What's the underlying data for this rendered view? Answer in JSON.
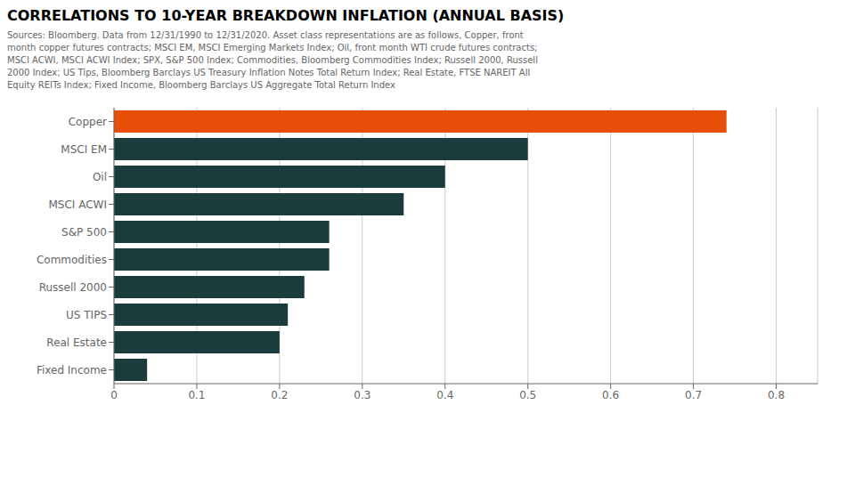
{
  "chart_data": {
    "type": "bar",
    "orientation": "horizontal",
    "title": "CORRELATIONS TO 10-YEAR BREAKDOWN INFLATION (ANNUAL BASIS)",
    "subtitle": "Sources: Bloomberg. Data from 12/31/1990 to 12/31/2020. Asset class representations are as follows, Copper, front\nmonth copper futures contracts; MSCI EM, MSCI Emerging Markets Index; Oil, front month WTI crude futures contracts;\nMSCI ACWI, MSCI ACWI Index; SPX, S&P 500 Index; Commodities, Bloomberg Commodities Index; Russell 2000, Russell\n2000 Index; US Tips, Bloomberg Barclays US Treasury Inflation Notes Total Return Index; Real Estate, FTSE NAREIT All\nEquity REITs Index; Fixed Income, Bloomberg Barclays US Aggregate Total Return Index",
    "categories": [
      "Copper",
      "MSCI EM",
      "Oil",
      "MSCI ACWI",
      "S&P 500",
      "Commodities",
      "Russell 2000",
      "US TIPS",
      "Real Estate",
      "Fixed Income"
    ],
    "values": [
      0.74,
      0.5,
      0.4,
      0.35,
      0.26,
      0.26,
      0.23,
      0.21,
      0.2,
      0.04
    ],
    "colors": [
      "#E8500A",
      "#1A3C3C",
      "#1A3C3C",
      "#1A3C3C",
      "#1A3C3C",
      "#1A3C3C",
      "#1A3C3C",
      "#1A3C3C",
      "#1A3C3C",
      "#1A3C3C"
    ],
    "xlim": [
      0,
      0.85
    ],
    "xticks": [
      0,
      0.1,
      0.2,
      0.3,
      0.4,
      0.5,
      0.6,
      0.7,
      0.8
    ],
    "grid": true
  }
}
